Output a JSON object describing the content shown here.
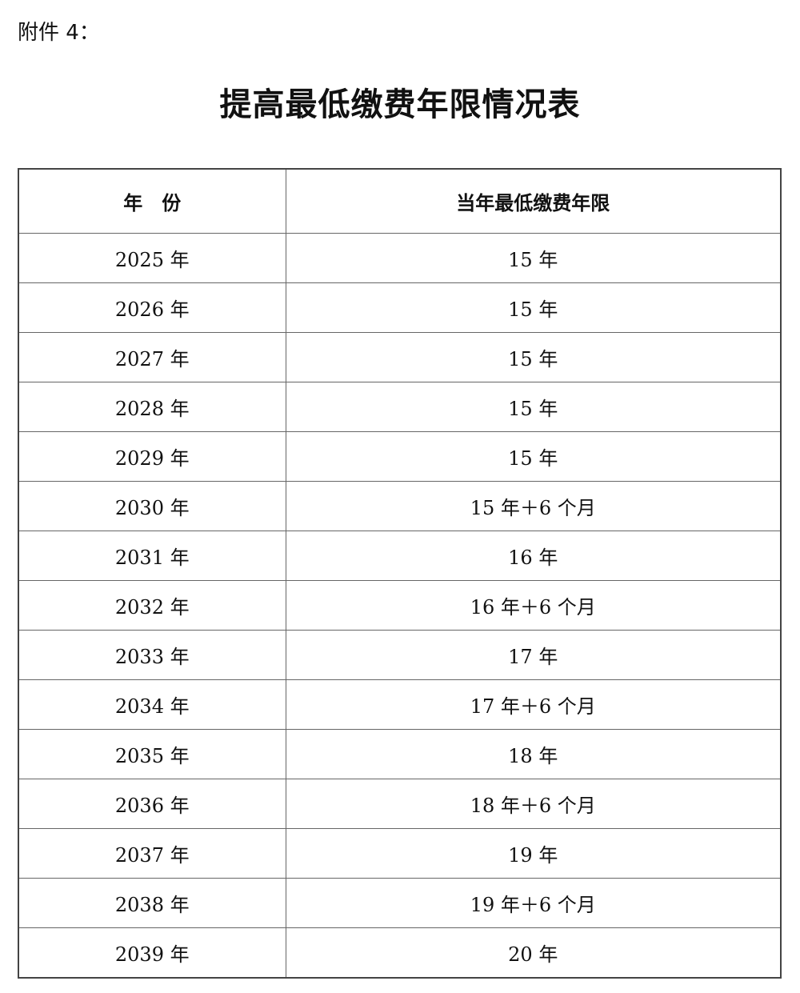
{
  "attachment_label": "附件 4：",
  "title": "提高最低缴费年限情况表",
  "table": {
    "headers": [
      "年　份",
      "当年最低缴费年限"
    ],
    "rows": [
      [
        "2025 年",
        "15 年"
      ],
      [
        "2026 年",
        "15 年"
      ],
      [
        "2027 年",
        "15 年"
      ],
      [
        "2028 年",
        "15 年"
      ],
      [
        "2029 年",
        "15 年"
      ],
      [
        "2030 年",
        "15 年＋6 个月"
      ],
      [
        "2031 年",
        "16 年"
      ],
      [
        "2032 年",
        "16 年＋6 个月"
      ],
      [
        "2033 年",
        "17 年"
      ],
      [
        "2034 年",
        "17 年＋6 个月"
      ],
      [
        "2035 年",
        "18 年"
      ],
      [
        "2036 年",
        "18 年＋6 个月"
      ],
      [
        "2037 年",
        "19 年"
      ],
      [
        "2038 年",
        "19 年＋6 个月"
      ],
      [
        "2039 年",
        "20 年"
      ]
    ]
  }
}
